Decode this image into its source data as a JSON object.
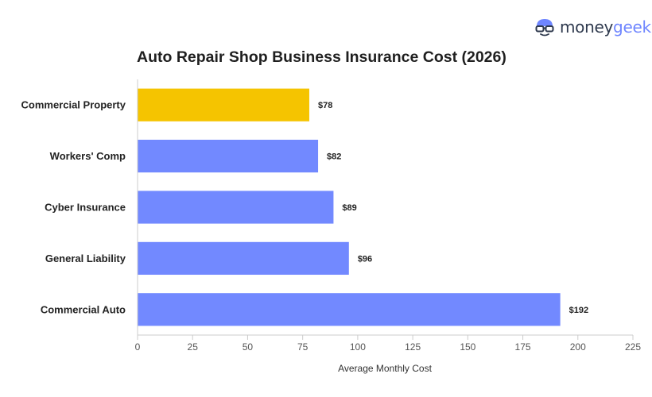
{
  "brand": {
    "logo_part1": "money",
    "logo_part2": "geek",
    "icon": "nerd-glasses-icon"
  },
  "colors": {
    "highlight_bar": "#f5c400",
    "default_bar": "#7289ff",
    "axis": "#cccccc",
    "logo_money": "#2f3a4e",
    "logo_geek": "#6f86ff"
  },
  "chart_data": {
    "type": "bar",
    "orientation": "horizontal",
    "title": "Auto Repair Shop Business Insurance Cost (2026)",
    "categories": [
      "Commercial Property",
      "Workers' Comp",
      "Cyber Insurance",
      "General Liability",
      "Commercial Auto"
    ],
    "values": [
      78,
      82,
      89,
      96,
      192
    ],
    "value_labels": [
      "$78",
      "$82",
      "$89",
      "$96",
      "$192"
    ],
    "highlight_index": 0,
    "xlabel": "Average Monthly Cost",
    "ylabel": "",
    "xlim": [
      0,
      225
    ],
    "xticks": [
      0,
      25,
      50,
      75,
      100,
      125,
      150,
      175,
      200,
      225
    ],
    "grid": false,
    "legend": "none"
  }
}
